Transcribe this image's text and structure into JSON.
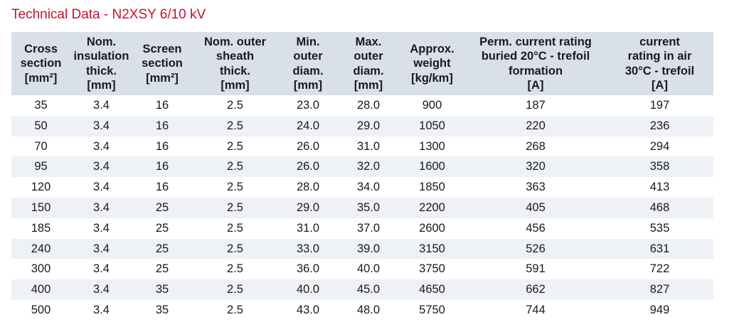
{
  "title": "Technical Data - N2XSY 6/10 kV",
  "columns": [
    "Cross\nsection\n[mm²]",
    "Nom.\ninsulation\nthick.\n[mm]",
    "Screen\nsection\n[mm²]",
    "Nom. outer\nsheath\nthick.\n[mm]",
    "Min.\nouter\ndiam.\n[mm]",
    "Max.\nouter\ndiam.\n[mm]",
    "Approx.\nweight\n[kg/km]",
    "Perm. current rating\nburied 20°C - trefoil\nformation\n[A]",
    "current\nrating in air\n30°C - trefoil\n[A]"
  ],
  "rows": [
    [
      "35",
      "3.4",
      "16",
      "2.5",
      "23.0",
      "28.0",
      "900",
      "187",
      "197"
    ],
    [
      "50",
      "3.4",
      "16",
      "2.5",
      "24.0",
      "29.0",
      "1050",
      "220",
      "236"
    ],
    [
      "70",
      "3.4",
      "16",
      "2.5",
      "26.0",
      "31.0",
      "1300",
      "268",
      "294"
    ],
    [
      "95",
      "3.4",
      "16",
      "2.5",
      "26.0",
      "32.0",
      "1600",
      "320",
      "358"
    ],
    [
      "120",
      "3.4",
      "16",
      "2.5",
      "28.0",
      "34.0",
      "1850",
      "363",
      "413"
    ],
    [
      "150",
      "3.4",
      "25",
      "2.5",
      "29.0",
      "35.0",
      "2200",
      "405",
      "468"
    ],
    [
      "185",
      "3.4",
      "25",
      "2.5",
      "31.0",
      "37.0",
      "2600",
      "456",
      "535"
    ],
    [
      "240",
      "3.4",
      "25",
      "2.5",
      "33.0",
      "39.0",
      "3150",
      "526",
      "631"
    ],
    [
      "300",
      "3.4",
      "25",
      "2.5",
      "36.0",
      "40.0",
      "3750",
      "591",
      "722"
    ],
    [
      "400",
      "3.4",
      "35",
      "2.5",
      "40.0",
      "45.0",
      "4650",
      "662",
      "827"
    ],
    [
      "500",
      "3.4",
      "35",
      "2.5",
      "43.0",
      "48.0",
      "5750",
      "744",
      "949"
    ]
  ]
}
